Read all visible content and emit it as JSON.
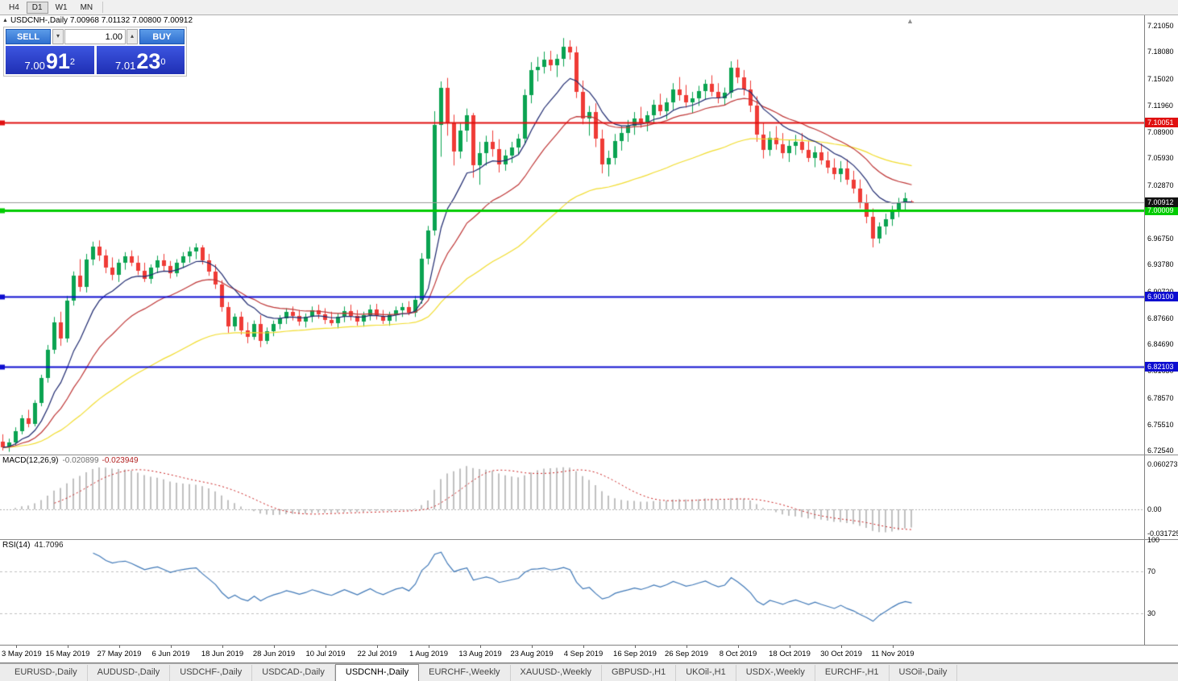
{
  "toolbar": {
    "timeframes": [
      {
        "label": "H4",
        "active": false
      },
      {
        "label": "D1",
        "active": true
      },
      {
        "label": "W1",
        "active": false
      },
      {
        "label": "MN",
        "active": false
      }
    ]
  },
  "header": {
    "symbol_info": "USDCNH-,Daily 7.00968 7.01132 7.00800 7.00912"
  },
  "icons": {
    "collapse_arrow": "▲",
    "shift_marker": "▲",
    "volume_up": "▴",
    "volume_down": "▾"
  },
  "trade_panel": {
    "sell_label": "SELL",
    "buy_label": "BUY",
    "volume": "1.00",
    "sell_price": {
      "prefix": "7.00",
      "big": "91",
      "sup": "2"
    },
    "buy_price": {
      "prefix": "7.01",
      "big": "23",
      "sup": "0"
    }
  },
  "chart_data": [
    {
      "type": "candlestick",
      "symbol": "USDCNH-,Daily",
      "up_color": "#0aa351",
      "down_color": "#ef3b36",
      "ylim": [
        6.7209,
        7.2225
      ],
      "y_ticks": [
        "7.21050",
        "7.18080",
        "7.15020",
        "7.11960",
        "7.08900",
        "7.05930",
        "7.02870",
        "6.99810",
        "6.96750",
        "6.93780",
        "6.90720",
        "6.87660",
        "6.84690",
        "6.81630",
        "6.78570",
        "6.75510",
        "6.72540"
      ],
      "x_tick_labels": [
        "3 May 2019",
        "15 May 2019",
        "27 May 2019",
        "6 Jun 2019",
        "18 Jun 2019",
        "28 Jun 2019",
        "10 Jul 2019",
        "22 Jul 2019",
        "1 Aug 2019",
        "13 Aug 2019",
        "23 Aug 2019",
        "4 Sep 2019",
        "16 Sep 2019",
        "26 Sep 2019",
        "8 Oct 2019",
        "18 Oct 2019",
        "30 Oct 2019",
        "11 Nov 2019"
      ],
      "x_tick_first_index": 2,
      "x_tick_step": 8,
      "moving_averages": [
        {
          "type": "ema",
          "period": 55,
          "color": "#f2dd2e"
        },
        {
          "type": "ema",
          "period": 21,
          "color": "#bf3636"
        },
        {
          "type": "ema",
          "period": 10,
          "color": "#1f2a70"
        }
      ],
      "hlines": [
        {
          "value": 7.10051,
          "label": "7.10051",
          "color": "#e01010",
          "width": 2
        },
        {
          "value": 7.00009,
          "label": "7.00009",
          "color": "#00cc00",
          "width": 3
        },
        {
          "value": 6.901,
          "label": "6.90100",
          "color": "#0d0dd0",
          "width": 2
        },
        {
          "value": 6.82103,
          "label": "6.82103",
          "color": "#0d0dd0",
          "width": 2
        }
      ],
      "current_price": {
        "value": 7.00912,
        "label": "7.00912",
        "line_color": "#9c9c9c",
        "tag_color": "#111111"
      },
      "candles": [
        [
          6.736,
          6.744,
          6.7255,
          6.729
        ],
        [
          6.729,
          6.739,
          6.724,
          6.735
        ],
        [
          6.735,
          6.752,
          6.731,
          6.748
        ],
        [
          6.748,
          6.766,
          6.744,
          6.762
        ],
        [
          6.762,
          6.772,
          6.752,
          6.756
        ],
        [
          6.756,
          6.783,
          6.753,
          6.78
        ],
        [
          6.78,
          6.812,
          6.776,
          6.808
        ],
        [
          6.808,
          6.846,
          6.803,
          6.841
        ],
        [
          6.841,
          6.878,
          6.836,
          6.872
        ],
        [
          6.872,
          6.884,
          6.845,
          6.853
        ],
        [
          6.853,
          6.902,
          6.849,
          6.897
        ],
        [
          6.897,
          6.93,
          6.891,
          6.925
        ],
        [
          6.925,
          6.944,
          6.907,
          6.912
        ],
        [
          6.912,
          6.95,
          6.906,
          6.944
        ],
        [
          6.944,
          6.964,
          6.937,
          6.958
        ],
        [
          6.958,
          6.9655,
          6.942,
          6.948
        ],
        [
          6.948,
          6.955,
          6.928,
          6.934
        ],
        [
          6.934,
          6.946,
          6.92,
          6.926
        ],
        [
          6.926,
          6.944,
          6.918,
          6.94
        ],
        [
          6.94,
          6.952,
          6.932,
          6.947
        ],
        [
          6.947,
          6.954,
          6.936,
          6.94
        ],
        [
          6.94,
          6.948,
          6.926,
          6.931
        ],
        [
          6.931,
          6.94,
          6.918,
          6.922
        ],
        [
          6.922,
          6.938,
          6.916,
          6.934
        ],
        [
          6.934,
          6.948,
          6.928,
          6.943
        ],
        [
          6.943,
          6.95,
          6.93,
          6.936
        ],
        [
          6.936,
          6.942,
          6.922,
          6.928
        ],
        [
          6.928,
          6.944,
          6.924,
          6.94
        ],
        [
          6.94,
          6.952,
          6.934,
          6.947
        ],
        [
          6.947,
          6.958,
          6.94,
          6.953
        ],
        [
          6.953,
          6.962,
          6.944,
          6.957
        ],
        [
          6.957,
          6.96,
          6.938,
          6.943
        ],
        [
          6.943,
          6.95,
          6.925,
          6.93
        ],
        [
          6.93,
          6.938,
          6.91,
          6.915
        ],
        [
          6.915,
          6.92,
          6.884,
          6.889
        ],
        [
          6.889,
          6.895,
          6.86,
          6.867
        ],
        [
          6.867,
          6.882,
          6.862,
          6.878
        ],
        [
          6.878,
          6.884,
          6.858,
          6.863
        ],
        [
          6.863,
          6.872,
          6.848,
          6.855
        ],
        [
          6.855,
          6.874,
          6.852,
          6.87
        ],
        [
          6.87,
          6.88,
          6.8435,
          6.851
        ],
        [
          6.851,
          6.866,
          6.847,
          6.862
        ],
        [
          6.862,
          6.874,
          6.856,
          6.87
        ],
        [
          6.87,
          6.88,
          6.864,
          6.876
        ],
        [
          6.876,
          6.888,
          6.87,
          6.884
        ],
        [
          6.884,
          6.89,
          6.874,
          6.879
        ],
        [
          6.879,
          6.886,
          6.868,
          6.873
        ],
        [
          6.873,
          6.882,
          6.866,
          6.878
        ],
        [
          6.878,
          6.89,
          6.872,
          6.886
        ],
        [
          6.886,
          6.892,
          6.876,
          6.881
        ],
        [
          6.881,
          6.888,
          6.87,
          6.875
        ],
        [
          6.875,
          6.884,
          6.868,
          6.871
        ],
        [
          6.871,
          6.882,
          6.865,
          6.878
        ],
        [
          6.878,
          6.89,
          6.872,
          6.885
        ],
        [
          6.885,
          6.892,
          6.874,
          6.879
        ],
        [
          6.879,
          6.886,
          6.868,
          6.873
        ],
        [
          6.873,
          6.884,
          6.867,
          6.88
        ],
        [
          6.88,
          6.892,
          6.874,
          6.887
        ],
        [
          6.887,
          6.893,
          6.875,
          6.879
        ],
        [
          6.879,
          6.886,
          6.87,
          6.874
        ],
        [
          6.874,
          6.884,
          6.868,
          6.88
        ],
        [
          6.88,
          6.89,
          6.873,
          6.886
        ],
        [
          6.886,
          6.894,
          6.878,
          6.889
        ],
        [
          6.889,
          6.896,
          6.88,
          6.883
        ],
        [
          6.883,
          6.902,
          6.878,
          6.898
        ],
        [
          6.898,
          6.951,
          6.893,
          6.945
        ],
        [
          6.945,
          6.982,
          6.938,
          6.977
        ],
        [
          6.977,
          7.113,
          6.971,
          7.097
        ],
        [
          7.097,
          7.147,
          7.061,
          7.14
        ],
        [
          7.14,
          7.151,
          7.085,
          7.1
        ],
        [
          7.1,
          7.109,
          7.051,
          7.067
        ],
        [
          7.067,
          7.099,
          7.059,
          7.091
        ],
        [
          7.091,
          7.116,
          7.078,
          7.108
        ],
        [
          7.108,
          7.111,
          7.037,
          7.051
        ],
        [
          7.051,
          7.078,
          7.029,
          7.065
        ],
        [
          7.065,
          7.085,
          7.051,
          7.078
        ],
        [
          7.078,
          7.091,
          7.061,
          7.07
        ],
        [
          7.07,
          7.081,
          7.043,
          7.052
        ],
        [
          7.052,
          7.069,
          7.045,
          7.062
        ],
        [
          7.062,
          7.078,
          7.054,
          7.072
        ],
        [
          7.072,
          7.087,
          7.064,
          7.082
        ],
        [
          7.082,
          7.138,
          7.075,
          7.131
        ],
        [
          7.131,
          7.169,
          7.122,
          7.16
        ],
        [
          7.16,
          7.175,
          7.147,
          7.164
        ],
        [
          7.164,
          7.181,
          7.156,
          7.172
        ],
        [
          7.172,
          7.182,
          7.159,
          7.165
        ],
        [
          7.165,
          7.178,
          7.152,
          7.173
        ],
        [
          7.173,
          7.1965,
          7.164,
          7.187
        ],
        [
          7.187,
          7.194,
          7.172,
          7.18
        ],
        [
          7.18,
          7.187,
          7.128,
          7.135
        ],
        [
          7.135,
          7.148,
          7.098,
          7.105
        ],
        [
          7.105,
          7.119,
          7.085,
          7.112
        ],
        [
          7.112,
          7.122,
          7.072,
          7.082
        ],
        [
          7.082,
          7.092,
          7.042,
          7.052
        ],
        [
          7.052,
          7.068,
          7.0385,
          7.06
        ],
        [
          7.06,
          7.087,
          7.052,
          7.079
        ],
        [
          7.079,
          7.096,
          7.068,
          7.088
        ],
        [
          7.088,
          7.103,
          7.078,
          7.096
        ],
        [
          7.096,
          7.112,
          7.086,
          7.105
        ],
        [
          7.105,
          7.118,
          7.094,
          7.099
        ],
        [
          7.099,
          7.113,
          7.09,
          7.108
        ],
        [
          7.108,
          7.126,
          7.099,
          7.12
        ],
        [
          7.12,
          7.133,
          7.108,
          7.113
        ],
        [
          7.113,
          7.128,
          7.104,
          7.123
        ],
        [
          7.123,
          7.145,
          7.114,
          7.138
        ],
        [
          7.138,
          7.152,
          7.125,
          7.131
        ],
        [
          7.131,
          7.143,
          7.117,
          7.123
        ],
        [
          7.123,
          7.135,
          7.111,
          7.128
        ],
        [
          7.128,
          7.142,
          7.119,
          7.136
        ],
        [
          7.136,
          7.149,
          7.126,
          7.144
        ],
        [
          7.144,
          7.154,
          7.13,
          7.135
        ],
        [
          7.135,
          7.145,
          7.122,
          7.128
        ],
        [
          7.128,
          7.14,
          7.12,
          7.134
        ],
        [
          7.134,
          7.17,
          7.128,
          7.163
        ],
        [
          7.163,
          7.172,
          7.145,
          7.152
        ],
        [
          7.152,
          7.16,
          7.131,
          7.138
        ],
        [
          7.138,
          7.148,
          7.112,
          7.119
        ],
        [
          7.119,
          7.13,
          7.078,
          7.086
        ],
        [
          7.086,
          7.1,
          7.059,
          7.069
        ],
        [
          7.069,
          7.09,
          7.062,
          7.083
        ],
        [
          7.083,
          7.096,
          7.069,
          7.075
        ],
        [
          7.075,
          7.088,
          7.059,
          7.065
        ],
        [
          7.065,
          7.08,
          7.055,
          7.073
        ],
        [
          7.073,
          7.086,
          7.063,
          7.078
        ],
        [
          7.078,
          7.088,
          7.065,
          7.069
        ],
        [
          7.069,
          7.079,
          7.055,
          7.06
        ],
        [
          7.06,
          7.073,
          7.049,
          7.066
        ],
        [
          7.066,
          7.076,
          7.052,
          7.057
        ],
        [
          7.057,
          7.067,
          7.042,
          7.049
        ],
        [
          7.049,
          7.059,
          7.035,
          7.041
        ],
        [
          7.041,
          7.056,
          7.032,
          7.048
        ],
        [
          7.048,
          7.058,
          7.029,
          7.035
        ],
        [
          7.035,
          7.045,
          7.019,
          7.025
        ],
        [
          7.025,
          7.035,
          7.002,
          7.008
        ],
        [
          7.008,
          7.018,
          6.985,
          6.992
        ],
        [
          6.992,
          7.002,
          6.9575,
          6.968
        ],
        [
          6.968,
          6.986,
          6.962,
          6.981
        ],
        [
          6.981,
          6.996,
          6.972,
          6.99
        ],
        [
          6.99,
          7.005,
          6.982,
          7.0
        ],
        [
          7.0,
          7.014,
          6.992,
          7.009
        ],
        [
          7.009,
          7.02,
          7.0,
          7.014
        ],
        [
          7.00968,
          7.01132,
          7.008,
          7.00912
        ]
      ]
    },
    {
      "type": "macd-histogram",
      "label": "MACD(12,26,9)",
      "value_main": "-0.020899",
      "value_signal": "-0.023949",
      "fast": 12,
      "slow": 26,
      "signal": 9,
      "range": [
        -0.0398,
        0.0723
      ],
      "y_ticks": [
        {
          "v": 0.060273,
          "t": "0.060273"
        },
        {
          "v": 0,
          "t": "0.00"
        },
        {
          "v": -0.031725,
          "t": "-0.031725"
        }
      ],
      "histogram_color": "#c0c0c0",
      "signal_color": "#cc2020"
    },
    {
      "type": "rsi-line",
      "label": "RSI(14)",
      "value": "41.7096",
      "period": 14,
      "levels": [
        70,
        30
      ],
      "range": [
        0,
        100
      ],
      "y_ticks": [
        {
          "v": 100,
          "t": "100"
        },
        {
          "v": 70,
          "t": "70"
        },
        {
          "v": 30,
          "t": "30"
        }
      ],
      "color": "#4079b8"
    }
  ],
  "tabs": [
    {
      "label": "EURUSD-,Daily",
      "active": false
    },
    {
      "label": "AUDUSD-,Daily",
      "active": false
    },
    {
      "label": "USDCHF-,Daily",
      "active": false
    },
    {
      "label": "USDCAD-,Daily",
      "active": false
    },
    {
      "label": "USDCNH-,Daily",
      "active": true
    },
    {
      "label": "EURCHF-,Weekly",
      "active": false
    },
    {
      "label": "XAUUSD-,Weekly",
      "active": false
    },
    {
      "label": "GBPUSD-,H1",
      "active": false
    },
    {
      "label": "UKOil-,H1",
      "active": false
    },
    {
      "label": "USDX-,Weekly",
      "active": false
    },
    {
      "label": "EURCHF-,H1",
      "active": false
    },
    {
      "label": "USOil-,Daily",
      "active": false
    }
  ]
}
